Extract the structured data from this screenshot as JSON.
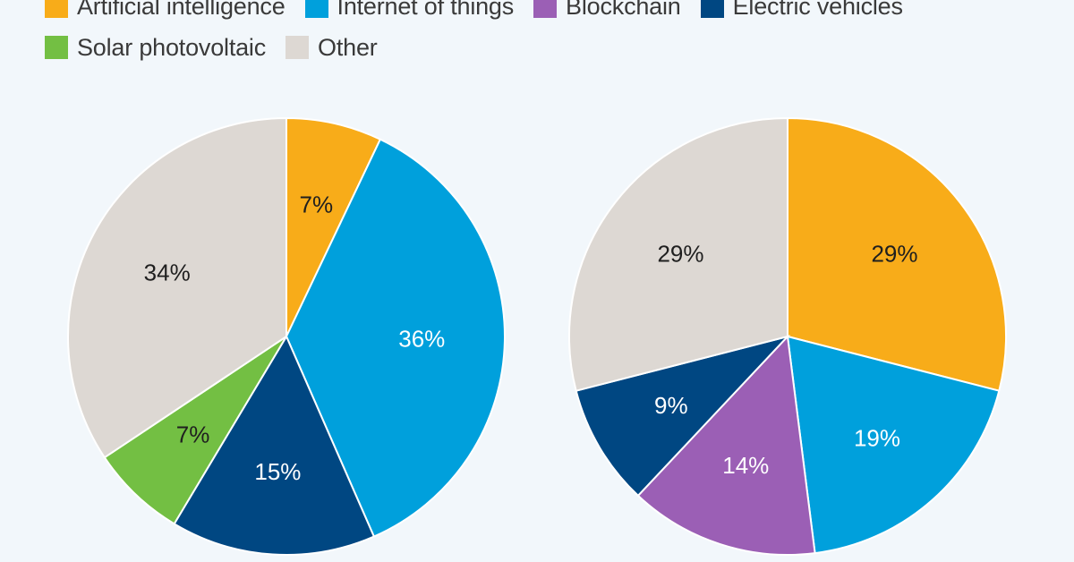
{
  "legend": [
    {
      "label": "Artificial intelligence",
      "color": "#f8ac19"
    },
    {
      "label": "Internet of things",
      "color": "#00a0dc"
    },
    {
      "label": "Blockchain",
      "color": "#9b5fb5"
    },
    {
      "label": "Electric vehicles",
      "color": "#004782"
    },
    {
      "label": "Solar photovoltaic",
      "color": "#73bf43"
    },
    {
      "label": "Other",
      "color": "#ddd8d3"
    }
  ],
  "chart_data": [
    {
      "type": "pie",
      "slices": [
        {
          "category": "Artificial intelligence",
          "value": 7,
          "label": "7%",
          "color": "#f8ac19"
        },
        {
          "category": "Internet of things",
          "value": 36,
          "label": "36%",
          "color": "#00a0dc"
        },
        {
          "category": "Electric vehicles",
          "value": 15,
          "label": "15%",
          "color": "#004782"
        },
        {
          "category": "Solar photovoltaic",
          "value": 7,
          "label": "7%",
          "color": "#73bf43"
        },
        {
          "category": "Other",
          "value": 34,
          "label": "34%",
          "color": "#ddd8d3"
        }
      ],
      "start": "12 o'clock",
      "direction": "clockwise"
    },
    {
      "type": "pie",
      "slices": [
        {
          "category": "Artificial intelligence",
          "value": 29,
          "label": "29%",
          "color": "#f8ac19"
        },
        {
          "category": "Internet of things",
          "value": 19,
          "label": "19%",
          "color": "#00a0dc"
        },
        {
          "category": "Blockchain",
          "value": 14,
          "label": "14%",
          "color": "#9b5fb5"
        },
        {
          "category": "Electric vehicles",
          "value": 9,
          "label": "9%",
          "color": "#004782"
        },
        {
          "category": "Other",
          "value": 29,
          "label": "29%",
          "color": "#ddd8d3"
        }
      ],
      "start": "12 o'clock",
      "direction": "clockwise"
    }
  ]
}
